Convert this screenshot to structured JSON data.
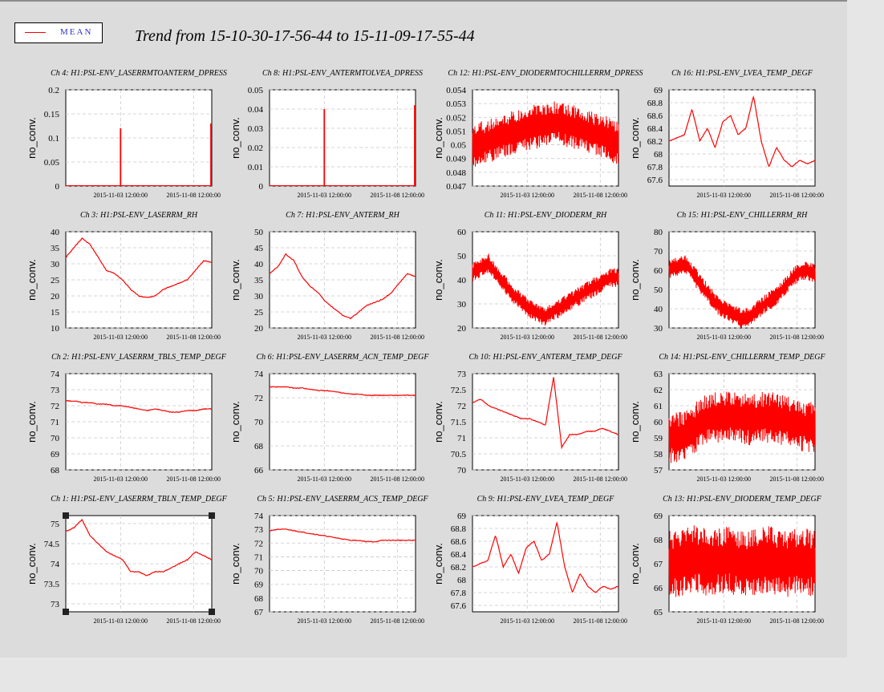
{
  "legend": {
    "label": "MEAN",
    "color": "#ff0000"
  },
  "title": "Trend from 15-10-30-17-56-44 to 15-11-09-17-55-44",
  "chart_data": [
    {
      "type": "line",
      "title": "Ch 4: H1:PSL-ENV_LASERRMTOANTERM_DPRESS",
      "ylabel": "no_conv.",
      "ylim": [
        0,
        0.2
      ],
      "yticks": [
        "0",
        "0.05",
        "0.1",
        "0.15",
        "0.2"
      ],
      "xticks": [
        "2015-11-03 12:00:00",
        "2015-11-08 12:00:00"
      ],
      "series": [
        {
          "values": [
            {
              "x": "2015-11-03 12:00:00",
              "y": 0.12
            },
            {
              "x": "2015-11-09 17:55:44",
              "y": 0.13
            }
          ]
        }
      ]
    },
    {
      "type": "line",
      "title": "Ch 8: H1:PSL-ENV_ANTERMTOLVEA_DPRESS",
      "ylabel": "no_conv.",
      "ylim": [
        0,
        0.05
      ],
      "yticks": [
        "0",
        "0.01",
        "0.02",
        "0.03",
        "0.04",
        "0.05"
      ],
      "xticks": [
        "2015-11-03 12:00:00",
        "2015-11-08 12:00:00"
      ],
      "series": [
        {
          "values": [
            {
              "x": "2015-11-03 12:00:00",
              "y": 0.04
            },
            {
              "x": "2015-11-09 17:55:44",
              "y": 0.042
            }
          ]
        }
      ]
    },
    {
      "type": "line",
      "title": "Ch 12: H1:PSL-ENV_DIODERMTOCHILLERRM_DPRESS",
      "ylabel": "no_conv.",
      "ylim": [
        0.047,
        0.054
      ],
      "yticks": [
        "0.047",
        "0.048",
        "0.049",
        "0.05",
        "0.051",
        "0.052",
        "0.053",
        "0.054"
      ],
      "xticks": [
        "2015-11-03 12:00:00",
        "2015-11-08 12:00:00"
      ],
      "series": [
        {
          "values": [
            0.0499,
            0.0502,
            0.0505,
            0.0508,
            0.0511,
            0.0513,
            0.0514,
            0.0516,
            0.0514,
            0.0511,
            0.0508,
            0.0505,
            0.0501
          ]
        }
      ]
    },
    {
      "type": "line",
      "title": "Ch 16: H1:PSL-ENV_LVEA_TEMP_DEGF",
      "ylabel": "no_conv.",
      "ylim": [
        67.5,
        69
      ],
      "yticks": [
        "67.6",
        "67.8",
        "68",
        "68.2",
        "68.4",
        "68.6",
        "68.8",
        "69"
      ],
      "xticks": [
        "2015-11-03 12:00:00",
        "2015-11-08 12:00:00"
      ],
      "series": [
        {
          "values": [
            68.2,
            68.25,
            68.3,
            68.7,
            68.2,
            68.4,
            68.1,
            68.5,
            68.6,
            68.3,
            68.4,
            68.9,
            68.2,
            67.8,
            68.1,
            67.9,
            67.8,
            67.9,
            67.85,
            67.9
          ]
        }
      ]
    },
    {
      "type": "line",
      "title": "Ch 3: H1:PSL-ENV_LASERRM_RH",
      "ylabel": "no_conv.",
      "ylim": [
        10,
        40
      ],
      "yticks": [
        "10",
        "15",
        "20",
        "25",
        "30",
        "35",
        "40"
      ],
      "xticks": [
        "2015-11-03 12:00:00",
        "2015-11-08 12:00:00"
      ],
      "series": [
        {
          "values": [
            32,
            35,
            38,
            36,
            32,
            28,
            27,
            25,
            22,
            20,
            19.5,
            20,
            22,
            23,
            24,
            25,
            28,
            31,
            30.5
          ]
        }
      ]
    },
    {
      "type": "line",
      "title": "Ch 7: H1:PSL-ENV_ANTERM_RH",
      "ylabel": "no_conv.",
      "ylim": [
        20,
        50
      ],
      "yticks": [
        "20",
        "25",
        "30",
        "35",
        "40",
        "45",
        "50"
      ],
      "xticks": [
        "2015-11-03 12:00:00",
        "2015-11-08 12:00:00"
      ],
      "series": [
        {
          "values": [
            37,
            39,
            43,
            41,
            36,
            33,
            31,
            28,
            26,
            24,
            23,
            25,
            27,
            28,
            29,
            31,
            34,
            37,
            36
          ]
        }
      ]
    },
    {
      "type": "line",
      "title": "Ch 11: H1:PSL-ENV_DIODERM_RH",
      "ylabel": "no_conv.",
      "ylim": [
        20,
        60
      ],
      "yticks": [
        "20",
        "30",
        "40",
        "50",
        "60"
      ],
      "xticks": [
        "2015-11-03 12:00:00",
        "2015-11-08 12:00:00"
      ],
      "series": [
        {
          "values": [
            43,
            45,
            47,
            42,
            38,
            34,
            31,
            28,
            26,
            25,
            27,
            29,
            31,
            33,
            35,
            37,
            39,
            41,
            41
          ]
        }
      ]
    },
    {
      "type": "line",
      "title": "Ch 15: H1:PSL-ENV_CHILLERRM_RH",
      "ylabel": "no_conv.",
      "ylim": [
        30,
        80
      ],
      "yticks": [
        "30",
        "40",
        "50",
        "60",
        "70",
        "80"
      ],
      "xticks": [
        "2015-11-03 12:00:00",
        "2015-11-08 12:00:00"
      ],
      "series": [
        {
          "values": [
            60,
            62,
            63,
            58,
            52,
            47,
            42,
            39,
            37,
            35,
            36,
            40,
            43,
            46,
            50,
            55,
            59,
            60,
            58
          ]
        }
      ]
    },
    {
      "type": "line",
      "title": "Ch 2: H1:PSL-ENV_LASERRM_TBLS_TEMP_DEGF",
      "ylabel": "no_conv.",
      "ylim": [
        68,
        74
      ],
      "yticks": [
        "68",
        "69",
        "70",
        "71",
        "72",
        "73",
        "74"
      ],
      "xticks": [
        "2015-11-03 12:00:00",
        "2015-11-08 12:00:00"
      ],
      "series": [
        {
          "values": [
            72.3,
            72.3,
            72.2,
            72.2,
            72.1,
            72.1,
            72.0,
            72.0,
            71.9,
            71.8,
            71.7,
            71.8,
            71.7,
            71.6,
            71.6,
            71.7,
            71.7,
            71.8,
            71.8
          ]
        }
      ]
    },
    {
      "type": "line",
      "title": "Ch 6: H1:PSL-ENV_LASERRM_ACN_TEMP_DEGF",
      "ylabel": "no_conv.",
      "ylim": [
        66,
        74
      ],
      "yticks": [
        "66",
        "68",
        "70",
        "72",
        "74"
      ],
      "xticks": [
        "2015-11-03 12:00:00",
        "2015-11-08 12:00:00"
      ],
      "series": [
        {
          "values": [
            72.9,
            72.9,
            72.9,
            72.8,
            72.8,
            72.7,
            72.6,
            72.6,
            72.5,
            72.4,
            72.3,
            72.3,
            72.2,
            72.2,
            72.2,
            72.2,
            72.2,
            72.2,
            72.2
          ]
        }
      ]
    },
    {
      "type": "line",
      "title": "Ch 10: H1:PSL-ENV_ANTERM_TEMP_DEGF",
      "ylabel": "no_conv.",
      "ylim": [
        70,
        73
      ],
      "yticks": [
        "70",
        "70.5",
        "71",
        "71.5",
        "72",
        "72.5",
        "73"
      ],
      "xticks": [
        "2015-11-03 12:00:00",
        "2015-11-08 12:00:00"
      ],
      "series": [
        {
          "values": [
            72.1,
            72.2,
            72.0,
            71.9,
            71.8,
            71.7,
            71.6,
            71.6,
            71.5,
            71.4,
            72.9,
            70.7,
            71.1,
            71.1,
            71.2,
            71.2,
            71.3,
            71.2,
            71.1
          ]
        }
      ]
    },
    {
      "type": "line",
      "title": "Ch 14: H1:PSL-ENV_CHILLERRM_TEMP_DEGF",
      "ylabel": "no_conv.",
      "ylim": [
        57,
        63
      ],
      "yticks": [
        "57",
        "58",
        "59",
        "60",
        "61",
        "62",
        "63"
      ],
      "xticks": [
        "2015-11-03 12:00:00",
        "2015-11-08 12:00:00"
      ],
      "series": [
        {
          "values": [
            59,
            59,
            59.2,
            59.5,
            60,
            60.2,
            60.3,
            60.4,
            60.3,
            60.2,
            60.1,
            60.2,
            60.3,
            60.2,
            60.1,
            60,
            59.8,
            59.7,
            59.6
          ]
        }
      ]
    },
    {
      "type": "line",
      "title": "Ch 1: H1:PSL-ENV_LASERRM_TBLN_TEMP_DEGF",
      "ylabel": "no_conv.",
      "ylim": [
        72.8,
        75.2
      ],
      "yticks": [
        "73",
        "73.5",
        "74",
        "74.5",
        "75"
      ],
      "xticks": [
        "2015-11-03 12:00:00",
        "2015-11-08 12:00:00"
      ],
      "series": [
        {
          "values": [
            74.8,
            74.9,
            75.1,
            74.7,
            74.5,
            74.3,
            74.2,
            74.1,
            73.8,
            73.8,
            73.7,
            73.8,
            73.8,
            73.9,
            74.0,
            74.1,
            74.3,
            74.2,
            74.1
          ]
        }
      ]
    },
    {
      "type": "line",
      "title": "Ch 5: H1:PSL-ENV_LASERRM_ACS_TEMP_DEGF",
      "ylabel": "no_conv.",
      "ylim": [
        67,
        74
      ],
      "yticks": [
        "67",
        "68",
        "69",
        "70",
        "71",
        "72",
        "73",
        "74"
      ],
      "xticks": [
        "2015-11-03 12:00:00",
        "2015-11-08 12:00:00"
      ],
      "series": [
        {
          "values": [
            72.9,
            73.0,
            73.0,
            72.9,
            72.8,
            72.7,
            72.6,
            72.5,
            72.4,
            72.3,
            72.2,
            72.2,
            72.1,
            72.1,
            72.2,
            72.2,
            72.2,
            72.2,
            72.2
          ]
        }
      ]
    },
    {
      "type": "line",
      "title": "Ch 9: H1:PSL-ENV_LVEA_TEMP_DEGF",
      "ylabel": "no_conv.",
      "ylim": [
        67.5,
        69
      ],
      "yticks": [
        "67.6",
        "67.8",
        "68",
        "68.2",
        "68.4",
        "68.6",
        "68.8",
        "69"
      ],
      "xticks": [
        "2015-11-03 12:00:00",
        "2015-11-08 12:00:00"
      ],
      "series": [
        {
          "values": [
            68.2,
            68.25,
            68.3,
            68.7,
            68.2,
            68.4,
            68.1,
            68.5,
            68.6,
            68.3,
            68.4,
            68.9,
            68.2,
            67.8,
            68.1,
            67.9,
            67.8,
            67.9,
            67.85,
            67.9
          ]
        }
      ]
    },
    {
      "type": "line",
      "title": "Ch 13: H1:PSL-ENV_DIODERM_TEMP_DEGF",
      "ylabel": "no_conv.",
      "ylim": [
        65,
        69
      ],
      "yticks": [
        "65",
        "66",
        "67",
        "68",
        "69"
      ],
      "xticks": [
        "2015-11-03 12:00:00",
        "2015-11-08 12:00:00"
      ],
      "series": [
        {
          "values": [
            67,
            67,
            67.1,
            67.2,
            67.1,
            67,
            67.1,
            67.2,
            67.1,
            67,
            67,
            67.1,
            67.2,
            67.1,
            67,
            67,
            67.1,
            67.1,
            67
          ]
        }
      ]
    }
  ]
}
